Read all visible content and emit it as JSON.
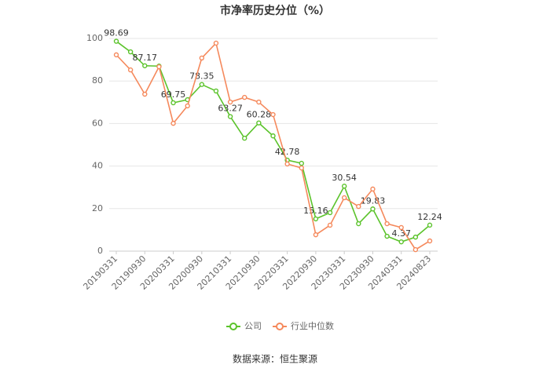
{
  "chart_data": {
    "type": "line",
    "title": "市净率历史分位（%）",
    "source": "数据来源：恒生聚源",
    "categories": [
      "20190331",
      null,
      "20190930",
      null,
      "20200331",
      null,
      "20200930",
      null,
      "20210331",
      null,
      "20210930",
      null,
      "20220331",
      null,
      "20220930",
      null,
      "20230331",
      null,
      "20230930",
      null,
      "20240331",
      null,
      "20240823"
    ],
    "series": [
      {
        "name": "公司",
        "color": "#5bc32b",
        "values": [
          98.69,
          93.7,
          87.17,
          87.0,
          69.75,
          71.2,
          78.35,
          75.3,
          63.27,
          53.1,
          60.28,
          54.2,
          42.78,
          41.3,
          15.16,
          18.1,
          30.54,
          12.9,
          19.83,
          7.0,
          4.37,
          6.6,
          12.24
        ],
        "value_labels": [
          "98.69",
          null,
          "87.17",
          null,
          "69.75",
          null,
          "78.35",
          null,
          "63.27",
          null,
          "60.28",
          null,
          "42.78",
          null,
          "15.16",
          null,
          "30.54",
          null,
          "19.83",
          null,
          "4.37",
          null,
          "12.24"
        ]
      },
      {
        "name": "行业中位数",
        "color": "#f5895c",
        "values": [
          92.3,
          85.2,
          73.8,
          86.7,
          60.1,
          68.3,
          90.8,
          97.8,
          70.1,
          72.3,
          70.1,
          64.2,
          41.0,
          39.1,
          7.7,
          12.2,
          25.1,
          21.0,
          29.2,
          12.9,
          11.1,
          0.7,
          4.8
        ]
      }
    ],
    "ylim": [
      0,
      100
    ],
    "yticks": [
      0,
      20,
      40,
      60,
      80,
      100
    ],
    "grid": true,
    "legend": "bottom"
  }
}
